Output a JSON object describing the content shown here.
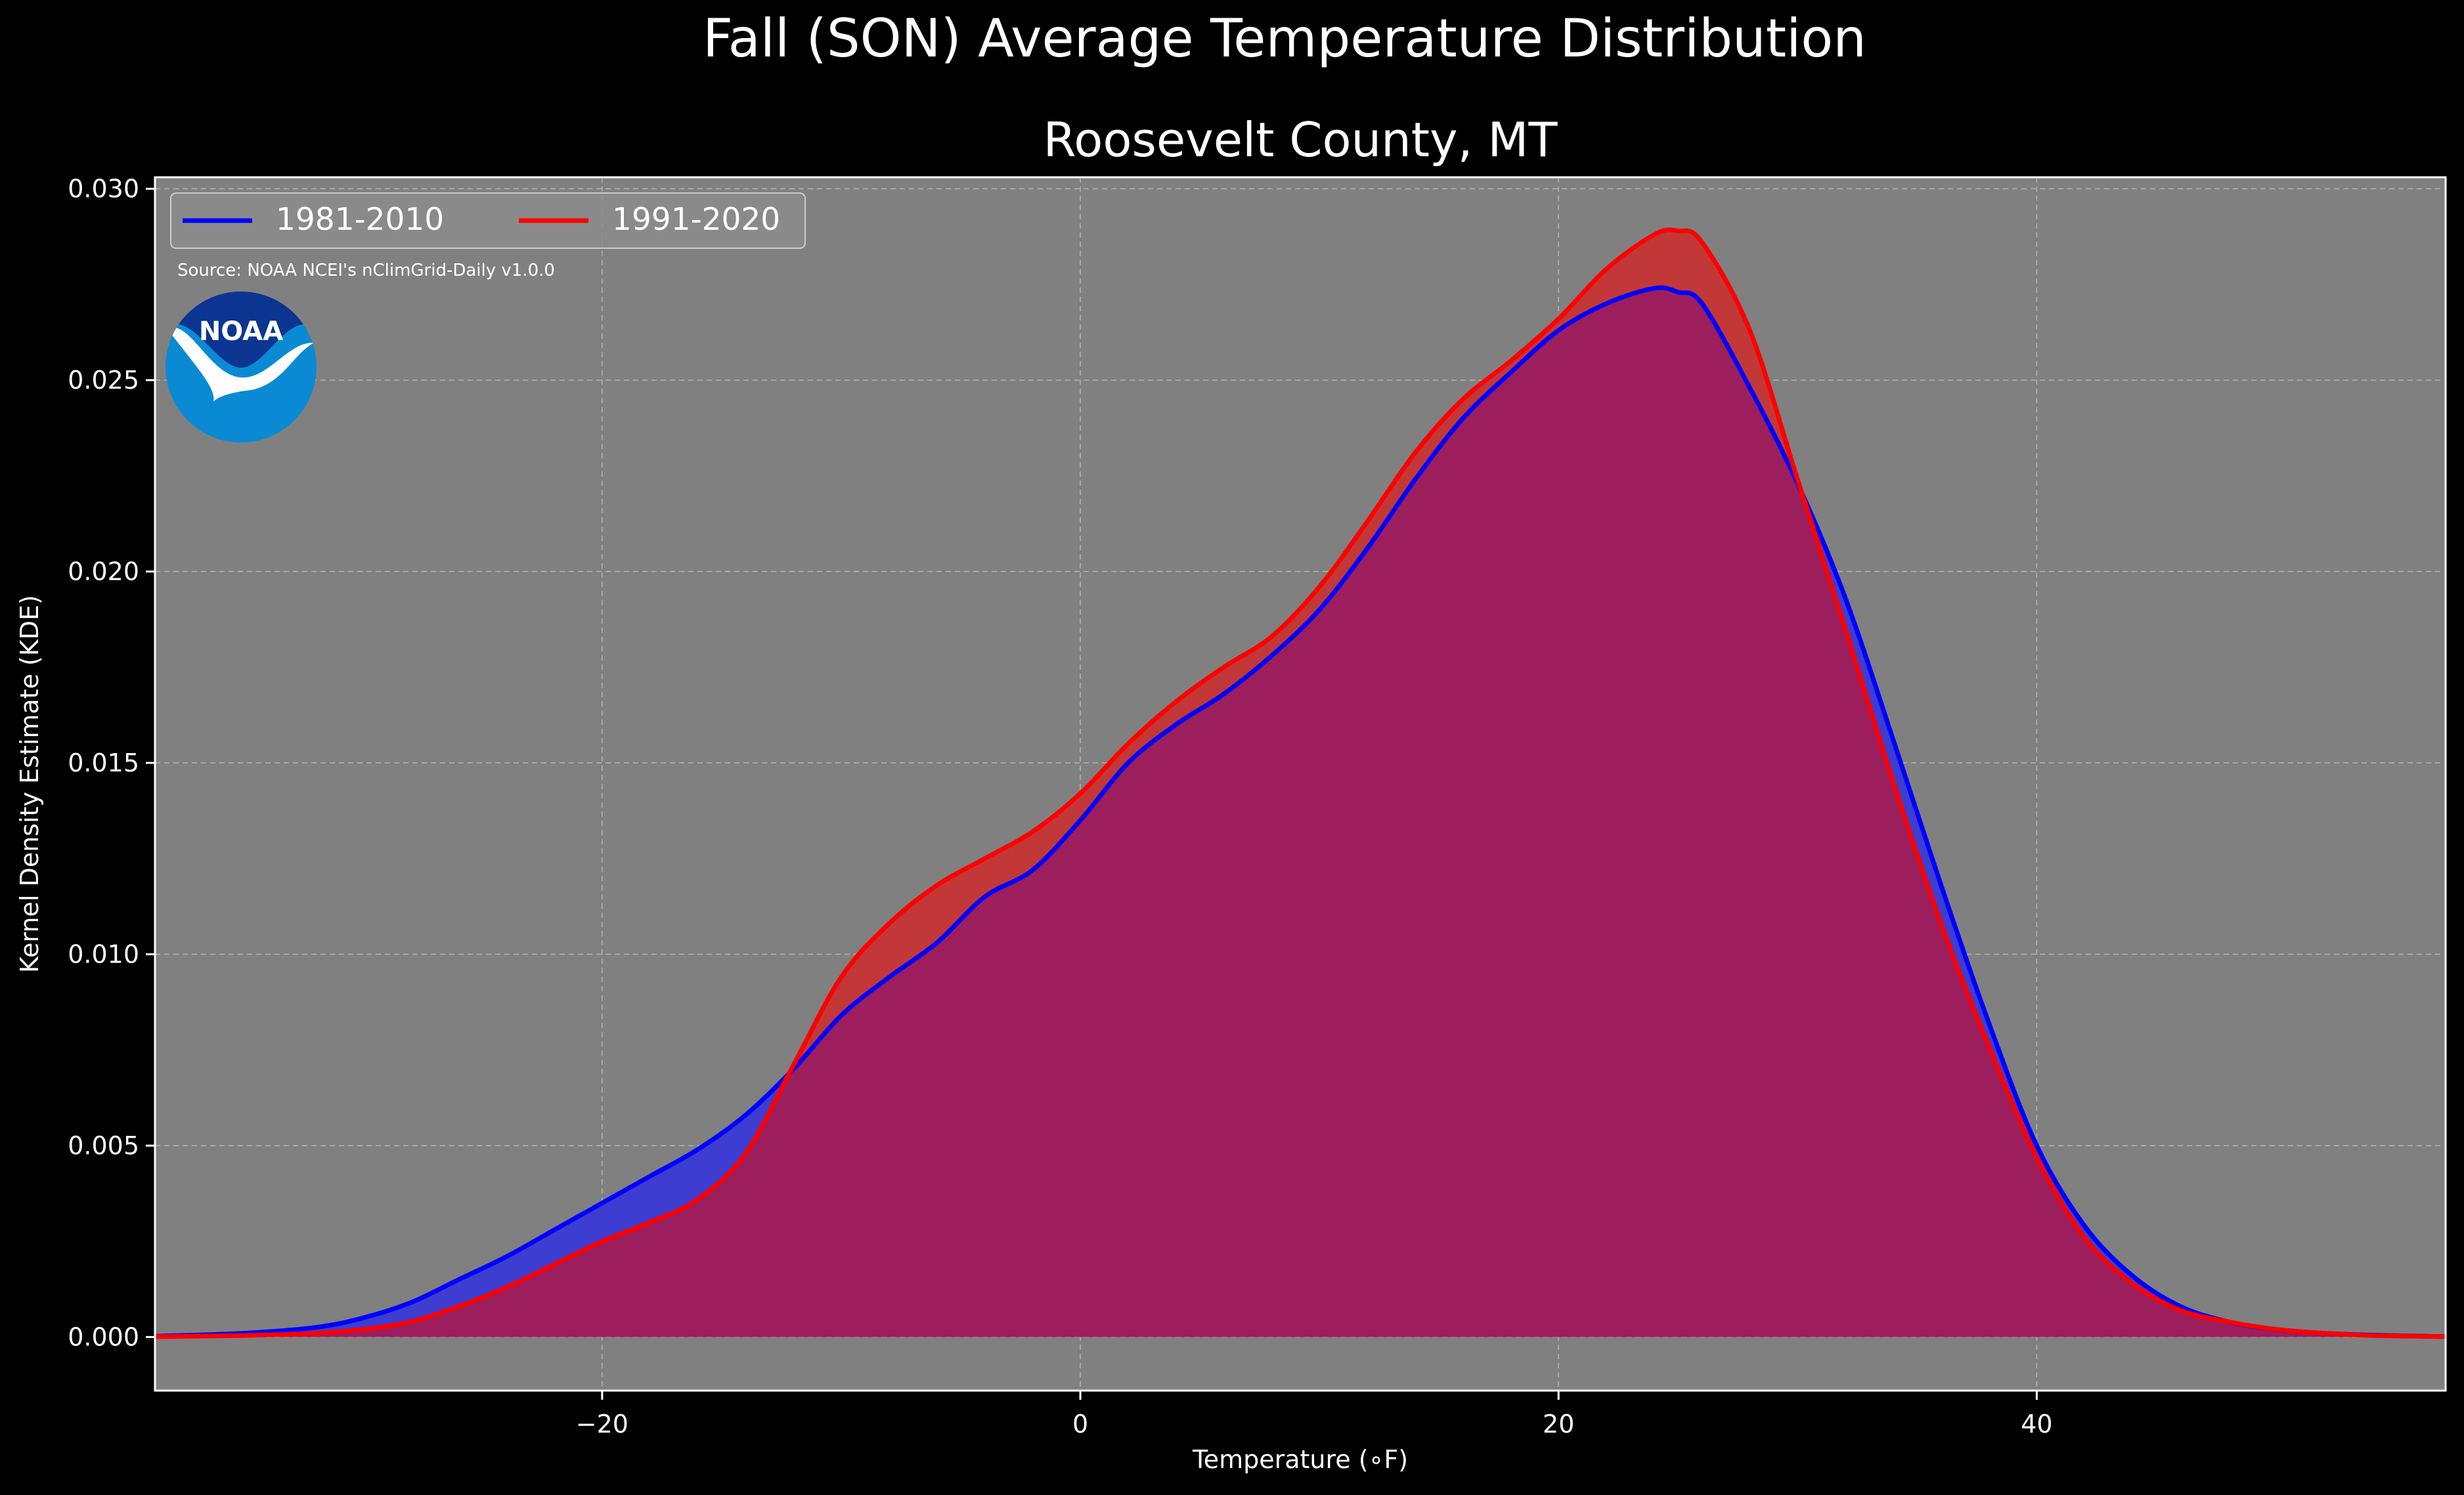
{
  "figure": {
    "suptitle": "Fall (SON) Average Temperature Distribution",
    "source_note": "Source: NOAA NCEI's nClimGrid-Daily v1.0.0",
    "logo_text": "NOAA"
  },
  "chart_data": {
    "type": "area",
    "title": "Roosevelt County, MT",
    "xlabel": "Temperature (∘F)",
    "ylabel": "Kernel Density Estimate (KDE)",
    "xlim": [
      -38.7,
      57.1
    ],
    "ylim": [
      -0.0014,
      0.0303
    ],
    "xticks": [
      -20,
      0,
      20,
      40
    ],
    "xtick_labels": [
      "−20",
      "0",
      "20",
      "40"
    ],
    "yticks": [
      0.0,
      0.005,
      0.01,
      0.015,
      0.02,
      0.025,
      0.03
    ],
    "ytick_labels": [
      "0.000",
      "0.005",
      "0.010",
      "0.015",
      "0.020",
      "0.025",
      "0.030"
    ],
    "grid": true,
    "legend_position": "upper-left",
    "background_color": "#808080",
    "overlap_color": "#9c1e5d",
    "series": [
      {
        "name": "1981-2010",
        "color": "#0000ff",
        "fill": "#3d3dd1",
        "x": [
          -38.7,
          -35,
          -32,
          -30,
          -28,
          -26,
          -24,
          -22,
          -20,
          -18,
          -16,
          -14,
          -12,
          -10,
          -8,
          -6,
          -4,
          -2,
          0,
          2,
          4,
          6,
          8,
          10,
          12,
          14,
          16,
          18,
          20,
          22,
          24,
          25,
          26,
          28,
          30,
          32,
          34,
          36,
          38,
          40,
          42,
          44,
          46,
          48,
          50,
          52,
          54,
          57.1
        ],
        "y": [
          2e-05,
          0.0001,
          0.00025,
          0.0005,
          0.0009,
          0.0015,
          0.0021,
          0.0028,
          0.0035,
          0.0042,
          0.0049,
          0.0058,
          0.007,
          0.0084,
          0.0094,
          0.0103,
          0.0115,
          0.0122,
          0.0135,
          0.015,
          0.016,
          0.0168,
          0.0178,
          0.019,
          0.0206,
          0.0224,
          0.024,
          0.0252,
          0.0263,
          0.027,
          0.0274,
          0.0273,
          0.027,
          0.0248,
          0.0223,
          0.0193,
          0.0156,
          0.0118,
          0.0082,
          0.005,
          0.0029,
          0.0016,
          0.0008,
          0.0004,
          0.0002,
          0.0001,
          5e-05,
          1e-05
        ]
      },
      {
        "name": "1991-2020",
        "color": "#ff0000",
        "fill": "#c23838",
        "x": [
          -38.7,
          -35,
          -32,
          -30,
          -28,
          -26,
          -24,
          -22,
          -20,
          -18,
          -16,
          -14,
          -12,
          -10,
          -8,
          -6,
          -4,
          -2,
          0,
          2,
          4,
          6,
          8,
          10,
          12,
          14,
          16,
          18,
          20,
          22,
          24,
          25,
          26,
          28,
          30,
          32,
          34,
          36,
          38,
          40,
          42,
          44,
          46,
          48,
          50,
          52,
          54,
          57.1
        ],
        "y": [
          1e-05,
          4e-05,
          0.0001,
          0.0002,
          0.0004,
          0.0008,
          0.0013,
          0.0019,
          0.0025,
          0.003,
          0.0036,
          0.0048,
          0.0071,
          0.0094,
          0.0108,
          0.0118,
          0.0125,
          0.0132,
          0.0142,
          0.0155,
          0.0166,
          0.0175,
          0.0183,
          0.0196,
          0.0213,
          0.0231,
          0.0245,
          0.0255,
          0.0266,
          0.0279,
          0.0288,
          0.0289,
          0.0286,
          0.0263,
          0.0224,
          0.0185,
          0.0145,
          0.0108,
          0.0076,
          0.0047,
          0.0026,
          0.0014,
          0.0007,
          0.0004,
          0.0002,
          0.0001,
          4e-05,
          1e-05
        ]
      }
    ]
  }
}
